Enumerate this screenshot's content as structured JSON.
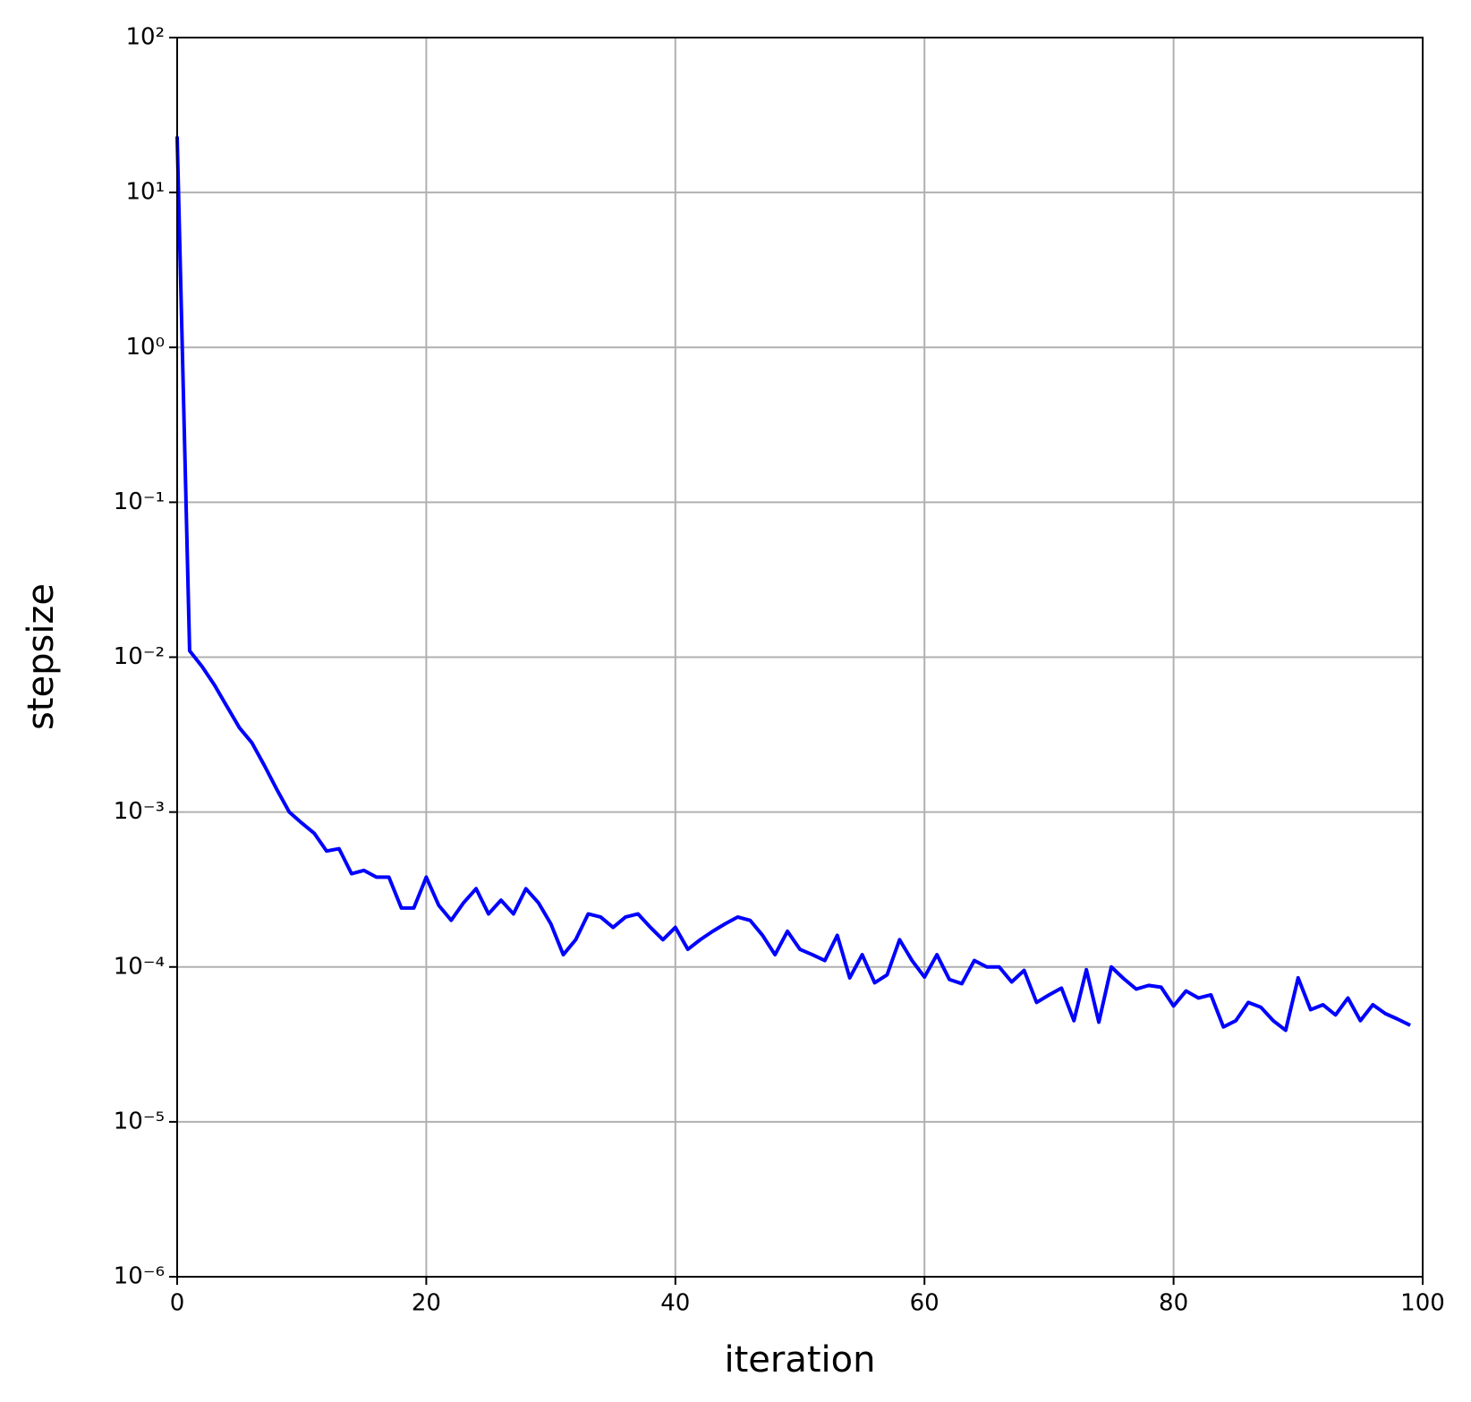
{
  "chart_data": {
    "type": "line",
    "xlabel": "iteration",
    "ylabel": "stepsize",
    "x": [
      0,
      1,
      2,
      3,
      4,
      5,
      6,
      7,
      8,
      9,
      10,
      11,
      12,
      13,
      14,
      15,
      16,
      17,
      18,
      19,
      20,
      21,
      22,
      23,
      24,
      25,
      26,
      27,
      28,
      29,
      30,
      31,
      32,
      33,
      34,
      35,
      36,
      37,
      38,
      39,
      40,
      41,
      42,
      43,
      44,
      45,
      46,
      47,
      48,
      49,
      50,
      51,
      52,
      53,
      54,
      55,
      56,
      57,
      58,
      59,
      60,
      61,
      62,
      63,
      64,
      65,
      66,
      67,
      68,
      69,
      70,
      71,
      72,
      73,
      74,
      75,
      76,
      77,
      78,
      79,
      80,
      81,
      82,
      83,
      84,
      85,
      86,
      87,
      88,
      89,
      90,
      91,
      92,
      93,
      94,
      95,
      96,
      97,
      98,
      99
    ],
    "values": [
      23,
      0.011,
      0.0087,
      0.0066,
      0.0048,
      0.0035,
      0.0028,
      0.002,
      0.0014,
      0.001,
      0.00085,
      0.00073,
      0.00056,
      0.00058,
      0.0004,
      0.00042,
      0.00038,
      0.00038,
      0.00024,
      0.00024,
      0.00038,
      0.00025,
      0.0002,
      0.00026,
      0.00032,
      0.00022,
      0.00027,
      0.00022,
      0.00032,
      0.00026,
      0.00019,
      0.00012,
      0.00015,
      0.00022,
      0.00021,
      0.00018,
      0.00021,
      0.00022,
      0.00018,
      0.00015,
      0.00018,
      0.00013,
      0.00015,
      0.00017,
      0.00019,
      0.00021,
      0.0002,
      0.00016,
      0.00012,
      0.00017,
      0.00013,
      0.00012,
      0.00011,
      0.00016,
      8.5e-05,
      0.00012,
      7.9e-05,
      8.9e-05,
      0.00015,
      0.00011,
      8.6e-05,
      0.00012,
      8.3e-05,
      7.8e-05,
      0.00011,
      0.0001,
      0.0001,
      8e-05,
      9.5e-05,
      5.9e-05,
      6.6e-05,
      7.3e-05,
      4.5e-05,
      9.6e-05,
      4.4e-05,
      0.0001,
      8.4e-05,
      7.2e-05,
      7.6e-05,
      7.4e-05,
      5.6e-05,
      7e-05,
      6.3e-05,
      6.6e-05,
      4.1e-05,
      4.5e-05,
      5.9e-05,
      5.5e-05,
      4.5e-05,
      3.9e-05,
      8.5e-05,
      5.3e-05,
      5.7e-05,
      4.9e-05,
      6.3e-05,
      4.5e-05,
      5.7e-05,
      5e-05,
      4.6e-05,
      4.2e-05
    ],
    "color": "#0000ff",
    "xlim": [
      0,
      100
    ],
    "xticks": [
      0,
      20,
      40,
      60,
      80,
      100
    ],
    "ylim": [
      1e-06,
      100
    ],
    "yscale": "log",
    "yticks": [
      {
        "value": 1e-06,
        "label": "10⁻⁶"
      },
      {
        "value": 1e-05,
        "label": "10⁻⁵"
      },
      {
        "value": 0.0001,
        "label": "10⁻⁴"
      },
      {
        "value": 0.001,
        "label": "10⁻³"
      },
      {
        "value": 0.01,
        "label": "10⁻²"
      },
      {
        "value": 0.1,
        "label": "10⁻¹"
      },
      {
        "value": 1,
        "label": "10⁰"
      },
      {
        "value": 10,
        "label": "10¹"
      },
      {
        "value": 100,
        "label": "10²"
      }
    ],
    "grid": true
  }
}
